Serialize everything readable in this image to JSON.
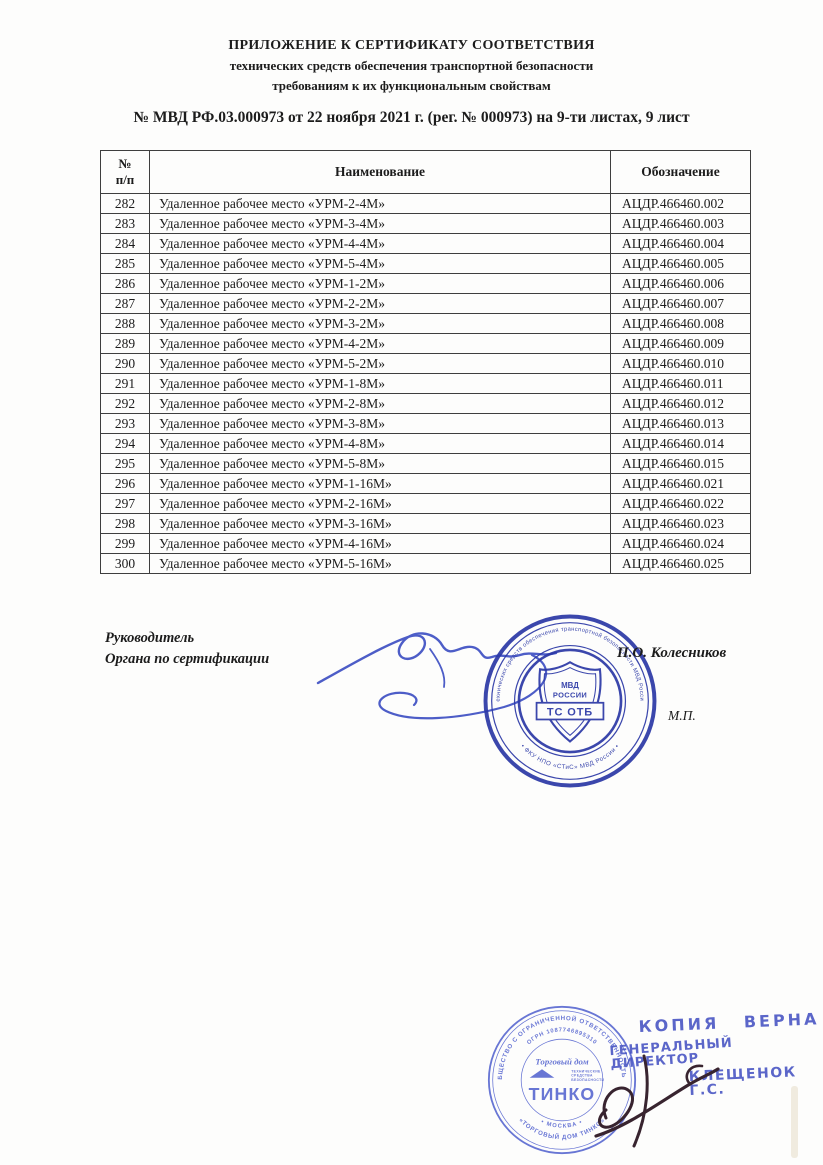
{
  "document": {
    "title_line1": "ПРИЛОЖЕНИЕ К СЕРТИФИКАТУ СООТВЕТСТВИЯ",
    "title_line2": "технических средств обеспечения транспортной безопасности",
    "title_line3": "требованиям к их функциональным свойствам",
    "reg_line": "№ МВД РФ.03.000973 от 22 ноября 2021 г. (рег. № 000973) на 9-ти листах, 9 лист"
  },
  "table": {
    "headers": {
      "num": "№\nп/п",
      "name": "Наименование",
      "designation": "Обозначение"
    },
    "rows": [
      {
        "num": "282",
        "name": "Удаленное рабочее место «УРМ-2-4М»",
        "designation": "АЦДР.466460.002"
      },
      {
        "num": "283",
        "name": "Удаленное рабочее место «УРМ-3-4М»",
        "designation": "АЦДР.466460.003"
      },
      {
        "num": "284",
        "name": "Удаленное рабочее место «УРМ-4-4М»",
        "designation": "АЦДР.466460.004"
      },
      {
        "num": "285",
        "name": "Удаленное рабочее место «УРМ-5-4М»",
        "designation": "АЦДР.466460.005"
      },
      {
        "num": "286",
        "name": "Удаленное рабочее место «УРМ-1-2М»",
        "designation": "АЦДР.466460.006"
      },
      {
        "num": "287",
        "name": "Удаленное рабочее место «УРМ-2-2М»",
        "designation": "АЦДР.466460.007"
      },
      {
        "num": "288",
        "name": "Удаленное рабочее место «УРМ-3-2М»",
        "designation": "АЦДР.466460.008"
      },
      {
        "num": "289",
        "name": "Удаленное рабочее место «УРМ-4-2М»",
        "designation": "АЦДР.466460.009"
      },
      {
        "num": "290",
        "name": "Удаленное рабочее место «УРМ-5-2М»",
        "designation": "АЦДР.466460.010"
      },
      {
        "num": "291",
        "name": "Удаленное рабочее место «УРМ-1-8М»",
        "designation": "АЦДР.466460.011"
      },
      {
        "num": "292",
        "name": "Удаленное рабочее место «УРМ-2-8М»",
        "designation": "АЦДР.466460.012"
      },
      {
        "num": "293",
        "name": "Удаленное рабочее место «УРМ-3-8М»",
        "designation": "АЦДР.466460.013"
      },
      {
        "num": "294",
        "name": "Удаленное рабочее место «УРМ-4-8М»",
        "designation": "АЦДР.466460.014"
      },
      {
        "num": "295",
        "name": "Удаленное рабочее место «УРМ-5-8М»",
        "designation": "АЦДР.466460.015"
      },
      {
        "num": "296",
        "name": "Удаленное рабочее место «УРМ-1-16М»",
        "designation": "АЦДР.466460.021"
      },
      {
        "num": "297",
        "name": "Удаленное рабочее место «УРМ-2-16М»",
        "designation": "АЦДР.466460.022"
      },
      {
        "num": "298",
        "name": "Удаленное рабочее место «УРМ-3-16М»",
        "designation": "АЦДР.466460.023"
      },
      {
        "num": "299",
        "name": "Удаленное рабочее место «УРМ-4-16М»",
        "designation": "АЦДР.466460.024"
      },
      {
        "num": "300",
        "name": "Удаленное рабочее место «УРМ-5-16М»",
        "designation": "АЦДР.466460.025"
      }
    ]
  },
  "signature_block": {
    "left_line1": "Руководитель",
    "left_line2": "Органа по сертификации",
    "signer_name": "П.О. Колесников",
    "mp_label": "М.П.",
    "ink_color": "#3a4cc2"
  },
  "mvd_stamp": {
    "ring_outer": "• технических средств обеспечения транспортной безопасности МВД России •",
    "ring_inner": "• ФКУ НПО «СТиС» МВД России •",
    "shield_line1": "МВД",
    "shield_line2": "РОССИИ",
    "banner": "ТС ОТБ",
    "color": "#2b38a6"
  },
  "tinko_stamp": {
    "ring_top": "ОБЩЕСТВО С ОГРАНИЧЕННОЙ ОТВЕТСТВЕННОСТЬЮ",
    "ring_bottom": "«ТОРГОВЫЙ ДОМ ТИНКО»",
    "ogrn": "ОГРН 1087746895310",
    "moscow": "• МОСКВА •",
    "script_text": "Торговый дом",
    "logo_text": "ТИНКО",
    "tagline1": "ТЕХНИЧЕСКИЕ",
    "tagline2": "СРЕДСТВА",
    "tagline3": "БЕЗОПАСНОСТИ",
    "color": "#4f5fce"
  },
  "copy_stamp": {
    "line1": "КОПИЯ ВЕРНА",
    "line2": "ГЕНЕРАЛЬНЫЙ ДИРЕКТОР",
    "line3": "КЛЕЩЕНОК Г.С.",
    "color": "#4552c2",
    "signature_ink": "#38242f"
  }
}
